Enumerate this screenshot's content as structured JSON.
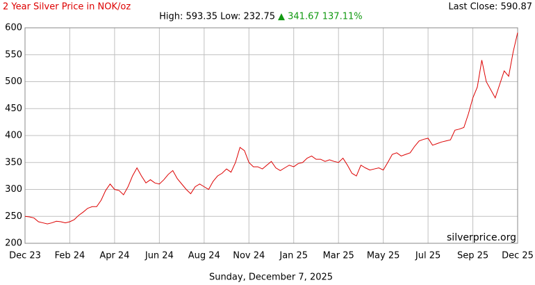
{
  "chart_data": {
    "type": "line",
    "title": "2 Year Silver Price in NOK/oz",
    "stats": "High: 593.35 Low: 232.75",
    "change": "▲ 341.67 137.11%",
    "last_close": "Last Close: 590.87",
    "watermark": "silverprice.org",
    "date": "Sunday, December 7, 2025",
    "x": [
      0,
      1,
      2,
      3,
      4,
      5,
      6,
      7,
      8,
      9,
      10,
      11,
      12,
      13,
      14,
      15,
      16,
      17,
      18,
      19,
      20,
      21,
      22,
      23,
      24,
      25,
      26,
      27,
      28,
      29,
      30,
      31,
      32,
      33,
      34,
      35,
      36,
      37,
      38,
      39,
      40,
      41,
      42,
      43,
      44,
      45,
      46,
      47,
      48,
      49,
      50,
      51,
      52,
      53,
      54,
      55,
      56,
      57,
      58,
      59,
      60,
      61,
      62,
      63,
      64,
      65,
      66,
      67,
      68,
      69,
      70,
      71,
      72,
      73,
      74,
      75,
      76,
      77,
      78,
      79,
      80,
      81,
      82,
      83,
      84,
      85,
      86,
      87,
      88,
      89,
      90,
      91,
      92,
      93,
      94,
      95,
      96,
      97,
      98,
      99,
      100,
      101,
      102,
      103,
      104,
      105,
      106,
      107,
      108,
      109,
      110
    ],
    "series": [
      {
        "name": "Silver NOK/oz",
        "color": "#dd0000",
        "values": [
          250,
          249,
          247,
          240,
          238,
          236,
          238,
          241,
          240,
          238,
          240,
          244,
          252,
          258,
          265,
          268,
          268,
          280,
          298,
          310,
          300,
          298,
          290,
          305,
          325,
          340,
          325,
          312,
          318,
          312,
          310,
          318,
          328,
          335,
          320,
          310,
          300,
          292,
          305,
          310,
          305,
          300,
          315,
          325,
          330,
          338,
          332,
          350,
          378,
          372,
          350,
          342,
          342,
          338,
          345,
          352,
          340,
          335,
          340,
          345,
          342,
          348,
          350,
          358,
          362,
          356,
          356,
          352,
          355,
          352,
          350,
          358,
          345,
          330,
          325,
          345,
          340,
          336,
          338,
          340,
          336,
          350,
          365,
          368,
          362,
          365,
          368,
          380,
          390,
          393,
          395,
          382,
          385,
          388,
          390,
          392,
          410,
          412,
          415,
          440,
          470,
          490,
          540,
          500,
          485,
          470,
          495,
          520,
          510,
          555,
          591
        ]
      }
    ],
    "xlim": [
      0,
      110
    ],
    "xticks": [
      {
        "value": 0,
        "label": "Dec 23"
      },
      {
        "value": 10,
        "label": "Feb 24"
      },
      {
        "value": 20,
        "label": "Apr 24"
      },
      {
        "value": 30,
        "label": "Jun 24"
      },
      {
        "value": 40,
        "label": "Aug 24"
      },
      {
        "value": 50,
        "label": "Nov 24"
      },
      {
        "value": 60,
        "label": "Jan 25"
      },
      {
        "value": 70,
        "label": "Mar 25"
      },
      {
        "value": 80,
        "label": "May 25"
      },
      {
        "value": 90,
        "label": "Jul 25"
      },
      {
        "value": 100,
        "label": "Sep 25"
      },
      {
        "value": 110,
        "label": "Dec 25"
      }
    ],
    "ylim": [
      200,
      600
    ],
    "yticks": [
      200,
      250,
      300,
      350,
      400,
      450,
      500,
      550,
      600
    ],
    "grid": true
  }
}
